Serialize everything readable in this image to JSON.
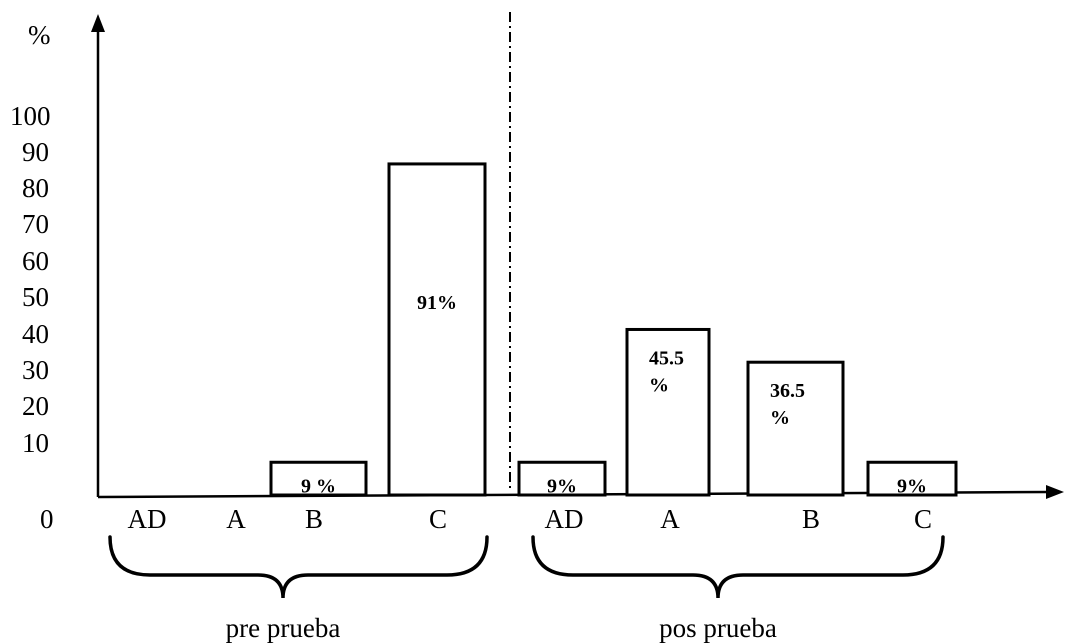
{
  "chart_data": {
    "type": "bar",
    "ylabel": "%",
    "ylim": [
      0,
      100
    ],
    "yticks": [
      "0",
      "10",
      "20",
      "30",
      "40",
      "50",
      "60",
      "70",
      "80",
      "90",
      "100"
    ],
    "grid": false,
    "groups": [
      {
        "name": "pre prueba",
        "bars": [
          {
            "category": "AD",
            "value": 0,
            "label": ""
          },
          {
            "category": "A",
            "value": 0,
            "label": ""
          },
          {
            "category": "B",
            "value": 9,
            "label": "9 %"
          },
          {
            "category": "C",
            "value": 91,
            "label": "91%"
          }
        ]
      },
      {
        "name": "pos prueba",
        "bars": [
          {
            "category": "AD",
            "value": 9,
            "label": "9%"
          },
          {
            "category": "A",
            "value": 45.5,
            "label": "45.5 %"
          },
          {
            "category": "B",
            "value": 36.5,
            "label": "36.5 %"
          },
          {
            "category": "C",
            "value": 9,
            "label": "9%"
          }
        ]
      }
    ],
    "divider": "dash-dot vertical line between groups"
  }
}
